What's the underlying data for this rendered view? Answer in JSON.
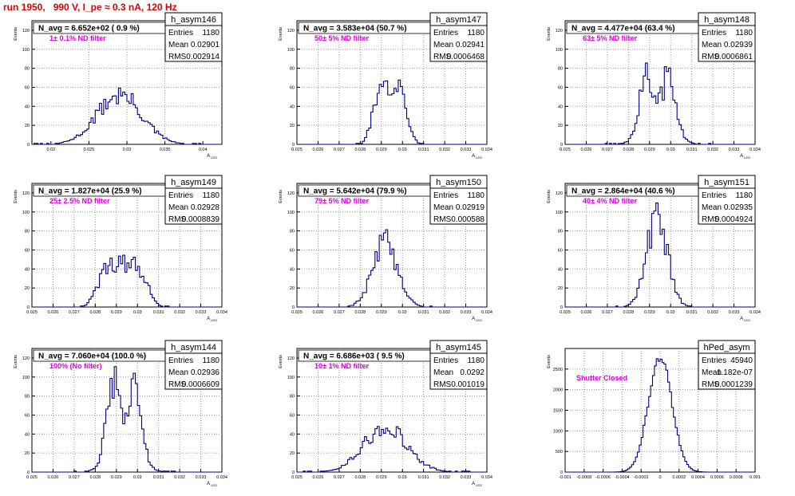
{
  "page": {
    "title": "run 1950,   990 V, I_pe ≈ 0.3 nA, 120 Hz"
  },
  "colors": {
    "title": "#e00000",
    "annotation": "#e000e0",
    "histogram": "#000080",
    "grid": "#999999"
  },
  "chart_data": [
    {
      "type": "bar",
      "title": "N_avg = 6.652e+02 ( 0.9 %)",
      "annotation": "1± 0.1% ND filter",
      "ylabel": "Events",
      "xlabel": "A",
      "x_ticks": [
        "0.02",
        "0.025",
        "0.03",
        "0.035",
        "0.04"
      ],
      "y_ticks": [
        "0",
        "20",
        "40",
        "60",
        "80",
        "100",
        "120"
      ],
      "xlim": [
        0.0175,
        0.0425
      ],
      "ylim": [
        0,
        130
      ],
      "stats": {
        "name": "h_asym146",
        "entries_label": "Entries",
        "entries": "1180",
        "mean_label": "Mean",
        "mean": "0.02901",
        "rms_label": "RMS",
        "rms": "0.002914"
      },
      "generator": {
        "mean": 0.02901,
        "rms": 0.002914,
        "bins": 90,
        "peak": 52,
        "profile": "gauss"
      }
    },
    {
      "type": "bar",
      "title": "N_avg = 3.583e+04 (50.7 %)",
      "annotation": "50± 5% ND filter",
      "ylabel": "Events",
      "xlabel": "A",
      "x_ticks": [
        "0.025",
        "0.026",
        "0.027",
        "0.028",
        "0.029",
        "0.03",
        "0.031",
        "0.032",
        "0.033",
        "0.034"
      ],
      "y_ticks": [
        "0",
        "20",
        "40",
        "60",
        "80",
        "100",
        "120"
      ],
      "xlim": [
        0.025,
        0.034
      ],
      "ylim": [
        0,
        130
      ],
      "stats": {
        "name": "h_asym147",
        "entries_label": "Entries",
        "entries": "1180",
        "mean_label": "Mean",
        "mean": "0.02941",
        "rms_label": "RMS",
        "rms": "0.0006468"
      },
      "generator": {
        "mean": 0.02941,
        "rms": 0.0006468,
        "bins": 90,
        "peak": 58,
        "profile": "flat"
      }
    },
    {
      "type": "bar",
      "title": "N_avg = 4.477e+04 (63.4 %)",
      "annotation": "63± 5% ND filter",
      "ylabel": "Events",
      "xlabel": "A",
      "x_ticks": [
        "0.025",
        "0.026",
        "0.027",
        "0.028",
        "0.029",
        "0.03",
        "0.031",
        "0.032",
        "0.033",
        "0.034"
      ],
      "y_ticks": [
        "0",
        "20",
        "40",
        "60",
        "80",
        "100",
        "120"
      ],
      "xlim": [
        0.025,
        0.034
      ],
      "ylim": [
        0,
        130
      ],
      "stats": {
        "name": "h_asym148",
        "entries_label": "Entries",
        "entries": "1180",
        "mean_label": "Mean",
        "mean": "0.02939",
        "rms_label": "RMS",
        "rms": "0.0006861"
      },
      "generator": {
        "mean": 0.02939,
        "rms": 0.0006861,
        "bins": 90,
        "peak": 62,
        "profile": "double"
      }
    },
    {
      "type": "bar",
      "title": "N_avg = 1.827e+04 (25.9 %)",
      "annotation": "25± 2.5% ND filter",
      "ylabel": "Events",
      "xlabel": "A",
      "x_ticks": [
        "0.025",
        "0.026",
        "0.027",
        "0.028",
        "0.029",
        "0.03",
        "0.031",
        "0.032",
        "0.033",
        "0.034"
      ],
      "y_ticks": [
        "0",
        "20",
        "40",
        "60",
        "80",
        "100",
        "120"
      ],
      "xlim": [
        0.025,
        0.034
      ],
      "ylim": [
        0,
        130
      ],
      "stats": {
        "name": "h_asym149",
        "entries_label": "Entries",
        "entries": "1180",
        "mean_label": "Mean",
        "mean": "0.02928",
        "rms_label": "RMS",
        "rms": "0.0008839"
      },
      "generator": {
        "mean": 0.02928,
        "rms": 0.0008839,
        "bins": 90,
        "peak": 45,
        "profile": "flat"
      }
    },
    {
      "type": "bar",
      "title": "N_avg = 5.642e+04 (79.9 %)",
      "annotation": "79± 5% ND filter",
      "ylabel": "Events",
      "xlabel": "A",
      "x_ticks": [
        "0.025",
        "0.026",
        "0.027",
        "0.028",
        "0.029",
        "0.03",
        "0.031",
        "0.032",
        "0.033",
        "0.034"
      ],
      "y_ticks": [
        "0",
        "20",
        "40",
        "60",
        "80",
        "100",
        "120"
      ],
      "xlim": [
        0.025,
        0.034
      ],
      "ylim": [
        0,
        130
      ],
      "stats": {
        "name": "h_asym150",
        "entries_label": "Entries",
        "entries": "1180",
        "mean_label": "Mean",
        "mean": "0.02919",
        "rms_label": "RMS",
        "rms": "0.000588"
      },
      "generator": {
        "mean": 0.02919,
        "rms": 0.000588,
        "bins": 90,
        "peak": 68,
        "profile": "gauss"
      }
    },
    {
      "type": "bar",
      "title": "N_avg = 2.864e+04 (40.6 %)",
      "annotation": "40± 4% ND filter",
      "ylabel": "Events",
      "xlabel": "A",
      "x_ticks": [
        "0.025",
        "0.026",
        "0.027",
        "0.028",
        "0.029",
        "0.03",
        "0.031",
        "0.032",
        "0.033",
        "0.034"
      ],
      "y_ticks": [
        "0",
        "20",
        "40",
        "60",
        "80",
        "100",
        "120"
      ],
      "xlim": [
        0.025,
        0.034
      ],
      "ylim": [
        0,
        130
      ],
      "stats": {
        "name": "h_asym151",
        "entries_label": "Entries",
        "entries": "1180",
        "mean_label": "Mean",
        "mean": "0.02935",
        "rms_label": "RMS",
        "rms": "0.0004924"
      },
      "generator": {
        "mean": 0.02935,
        "rms": 0.0004924,
        "bins": 90,
        "peak": 95,
        "profile": "gauss"
      }
    },
    {
      "type": "bar",
      "title": "N_avg = 7.060e+04 (100.0 %)",
      "annotation": "100% (No filter)",
      "ylabel": "Events",
      "xlabel": "A",
      "x_ticks": [
        "0.025",
        "0.026",
        "0.027",
        "0.028",
        "0.029",
        "0.03",
        "0.031",
        "0.032",
        "0.033",
        "0.034"
      ],
      "y_ticks": [
        "0",
        "20",
        "40",
        "60",
        "80",
        "100",
        "120"
      ],
      "xlim": [
        0.025,
        0.034
      ],
      "ylim": [
        0,
        130
      ],
      "stats": {
        "name": "h_asym144",
        "entries_label": "Entries",
        "entries": "1180",
        "mean_label": "Mean",
        "mean": "0.02936",
        "rms_label": "RMS",
        "rms": "0.0006609"
      },
      "generator": {
        "mean": 0.02936,
        "rms": 0.0006609,
        "bins": 90,
        "peak": 82,
        "profile": "double"
      }
    },
    {
      "type": "bar",
      "title": "N_avg = 6.686e+03 ( 9.5 %)",
      "annotation": "10± 1% ND filter",
      "ylabel": "Events",
      "xlabel": "A",
      "x_ticks": [
        "0.025",
        "0.026",
        "0.027",
        "0.028",
        "0.029",
        "0.03",
        "0.031",
        "0.032",
        "0.033",
        "0.034"
      ],
      "y_ticks": [
        "0",
        "20",
        "40",
        "60",
        "80",
        "100",
        "120"
      ],
      "xlim": [
        0.025,
        0.034
      ],
      "ylim": [
        0,
        130
      ],
      "stats": {
        "name": "h_asym145",
        "entries_label": "Entries",
        "entries": "1180",
        "mean_label": "Mean",
        "mean": "0.0292",
        "rms_label": "RMS",
        "rms": "0.001019"
      },
      "generator": {
        "mean": 0.0292,
        "rms": 0.001019,
        "bins": 90,
        "peak": 48,
        "profile": "gauss"
      }
    },
    {
      "type": "bar",
      "title": "",
      "annotation": "Shutter Closed",
      "ylabel": "Events",
      "xlabel": "",
      "x_ticks": [
        "-0.001",
        "-0.0008",
        "-0.0006",
        "-0.0004",
        "-0.0002",
        "0",
        "0.0002",
        "0.0004",
        "0.0006",
        "0.0008",
        "0.001"
      ],
      "y_ticks": [
        "0",
        "500",
        "1000",
        "1500",
        "2000",
        "2500"
      ],
      "xlim": [
        -0.001,
        0.001
      ],
      "ylim": [
        0,
        3000
      ],
      "stats": {
        "name": "hPed_asym",
        "entries_label": "Entries",
        "entries": "45940",
        "mean_label": "Mean",
        "mean": "1.182e-07",
        "rms_label": "RMS",
        "rms": "0.0001239"
      },
      "generator": {
        "mean": 0.0,
        "rms": 0.0001239,
        "bins": 100,
        "peak": 2800,
        "profile": "gauss"
      }
    }
  ]
}
